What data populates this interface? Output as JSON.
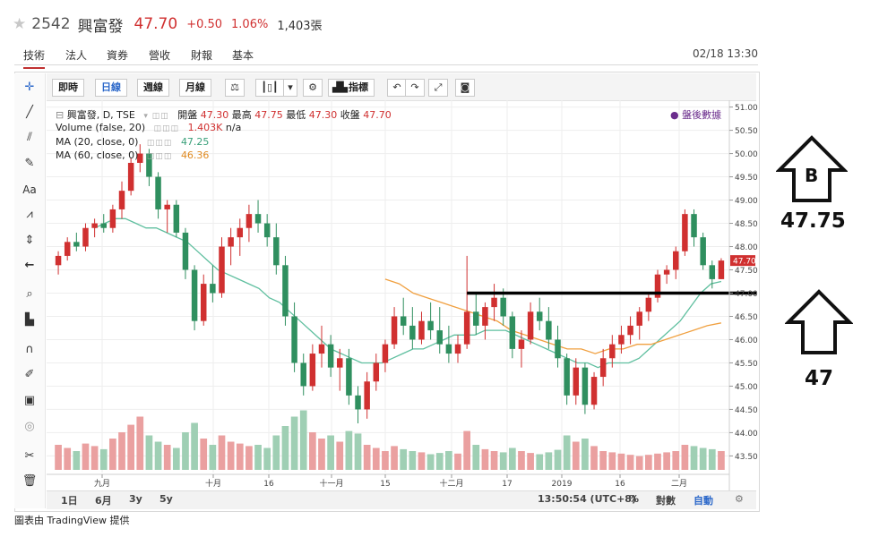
{
  "header": {
    "code": "2542",
    "name": "興富發",
    "price": "47.70",
    "change": "+0.50",
    "change_pct": "1.06%",
    "volume": "1,403張"
  },
  "tabs": [
    "技術",
    "法人",
    "資券",
    "營收",
    "財報",
    "基本"
  ],
  "timestamp": "02/18 13:30",
  "toolbar": {
    "buttons": [
      "即時",
      "日線",
      "週線",
      "月線"
    ],
    "indicator_label": "指標"
  },
  "legend": {
    "symbol_line": "興富發, D, TSE",
    "open_label": "開盤",
    "open": "47.30",
    "high_label": "最高",
    "high": "47.75",
    "low_label": "最低",
    "low": "47.30",
    "close_label": "收盤",
    "close": "47.70",
    "volume_line": "Volume (false, 20)",
    "volume_value": "1.403K",
    "volume_na": "n/a",
    "ma20_line": "MA (20, close, 0)",
    "ma20_value": "47.25",
    "ma60_line": "MA (60, close, 0)",
    "ma60_value": "46.36",
    "after_hours": "盤後數據"
  },
  "colors": {
    "up": "#d03030",
    "down": "#2f8f5f",
    "ma20": "#5fbf9f",
    "ma60": "#f0a040",
    "vol_up": "#eaa0a0",
    "vol_down": "#9fcfb4"
  },
  "bottom": {
    "ranges": [
      "1日",
      "6月",
      "3y",
      "5y"
    ],
    "clock": "13:50:54 (UTC+8)",
    "pct": "%",
    "log": "對數",
    "auto": "自動"
  },
  "credit": "圖表由 TradingView 提供",
  "annotations": {
    "upper_letter": "B",
    "upper_value": "47.75",
    "lower_value": "47",
    "support_level": 47.0
  },
  "chart_data": {
    "type": "candlestick",
    "ylim": [
      43.2,
      51.05
    ],
    "y_ticks": [
      "51.00",
      "50.50",
      "50.00",
      "49.50",
      "49.00",
      "48.50",
      "48.00",
      "47.50",
      "47.00",
      "46.50",
      "46.00",
      "45.50",
      "45.00",
      "44.50",
      "44.00",
      "43.50"
    ],
    "x_tick_labels": [
      "九月",
      "十月",
      "16",
      "十一月",
      "15",
      "十二月",
      "17",
      "2019",
      "16",
      "二月"
    ],
    "last_price_tag": "47.70",
    "candles": [
      [
        47.6,
        47.9,
        47.4,
        47.8
      ],
      [
        47.8,
        48.2,
        47.7,
        48.1
      ],
      [
        48.1,
        48.3,
        47.9,
        48.0
      ],
      [
        48.0,
        48.5,
        47.9,
        48.4
      ],
      [
        48.4,
        48.6,
        48.2,
        48.5
      ],
      [
        48.5,
        48.7,
        48.3,
        48.4
      ],
      [
        48.4,
        48.9,
        48.3,
        48.8
      ],
      [
        48.8,
        49.4,
        48.6,
        49.2
      ],
      [
        49.2,
        49.9,
        49.1,
        49.8
      ],
      [
        49.8,
        50.2,
        49.6,
        50.0
      ],
      [
        50.0,
        50.1,
        49.3,
        49.5
      ],
      [
        49.5,
        49.6,
        48.6,
        48.8
      ],
      [
        48.8,
        49.0,
        48.3,
        48.9
      ],
      [
        48.9,
        49.0,
        48.2,
        48.3
      ],
      [
        48.3,
        48.4,
        47.3,
        47.5
      ],
      [
        47.5,
        47.6,
        46.2,
        46.4
      ],
      [
        46.4,
        47.4,
        46.3,
        47.2
      ],
      [
        47.2,
        47.6,
        46.8,
        47.0
      ],
      [
        47.0,
        48.2,
        46.9,
        48.0
      ],
      [
        48.0,
        48.4,
        47.6,
        48.2
      ],
      [
        48.2,
        48.6,
        47.8,
        48.4
      ],
      [
        48.4,
        48.9,
        48.1,
        48.7
      ],
      [
        48.7,
        49.0,
        48.3,
        48.5
      ],
      [
        48.5,
        48.7,
        48.0,
        48.2
      ],
      [
        48.2,
        48.5,
        47.4,
        47.6
      ],
      [
        47.6,
        47.8,
        46.3,
        46.5
      ],
      [
        46.5,
        46.8,
        45.3,
        45.5
      ],
      [
        45.5,
        45.7,
        44.8,
        45.0
      ],
      [
        45.0,
        45.9,
        44.9,
        45.7
      ],
      [
        45.7,
        46.3,
        45.4,
        45.9
      ],
      [
        45.9,
        46.1,
        45.2,
        45.4
      ],
      [
        45.4,
        45.8,
        44.9,
        45.6
      ],
      [
        45.6,
        45.8,
        44.6,
        44.8
      ],
      [
        44.8,
        45.0,
        44.2,
        44.5
      ],
      [
        44.5,
        45.3,
        44.3,
        45.1
      ],
      [
        45.1,
        45.7,
        44.9,
        45.5
      ],
      [
        45.5,
        46.0,
        45.3,
        45.9
      ],
      [
        45.9,
        46.7,
        45.8,
        46.5
      ],
      [
        46.5,
        46.9,
        46.1,
        46.3
      ],
      [
        46.3,
        46.7,
        45.8,
        46.0
      ],
      [
        46.0,
        46.6,
        45.9,
        46.4
      ],
      [
        46.4,
        46.8,
        46.0,
        46.2
      ],
      [
        46.2,
        46.7,
        45.7,
        45.9
      ],
      [
        45.9,
        46.3,
        45.5,
        45.7
      ],
      [
        45.7,
        46.1,
        45.5,
        45.9
      ],
      [
        45.9,
        47.8,
        45.8,
        46.6
      ],
      [
        46.6,
        47.0,
        46.1,
        46.3
      ],
      [
        46.3,
        46.8,
        46.0,
        46.7
      ],
      [
        46.7,
        47.2,
        46.4,
        46.9
      ],
      [
        46.9,
        47.1,
        46.3,
        46.5
      ],
      [
        46.5,
        46.6,
        45.6,
        45.8
      ],
      [
        45.8,
        46.2,
        45.4,
        46.0
      ],
      [
        46.0,
        46.8,
        45.9,
        46.6
      ],
      [
        46.6,
        46.9,
        46.2,
        46.4
      ],
      [
        46.4,
        46.7,
        45.8,
        46.0
      ],
      [
        46.0,
        46.3,
        45.4,
        45.6
      ],
      [
        45.6,
        45.7,
        44.6,
        44.8
      ],
      [
        44.8,
        45.6,
        44.6,
        45.4
      ],
      [
        45.4,
        45.5,
        44.4,
        44.6
      ],
      [
        44.6,
        45.3,
        44.5,
        45.2
      ],
      [
        45.2,
        45.8,
        45.0,
        45.6
      ],
      [
        45.6,
        46.1,
        45.4,
        45.9
      ],
      [
        45.9,
        46.3,
        45.7,
        46.1
      ],
      [
        46.1,
        46.5,
        45.9,
        46.3
      ],
      [
        46.3,
        46.7,
        46.0,
        46.6
      ],
      [
        46.6,
        47.0,
        46.4,
        46.9
      ],
      [
        46.9,
        47.5,
        46.8,
        47.4
      ],
      [
        47.4,
        47.6,
        47.2,
        47.5
      ],
      [
        47.5,
        48.0,
        47.3,
        47.9
      ],
      [
        47.9,
        48.8,
        47.8,
        48.7
      ],
      [
        48.7,
        48.8,
        48.0,
        48.2
      ],
      [
        48.2,
        48.3,
        47.5,
        47.6
      ],
      [
        47.6,
        47.7,
        47.1,
        47.3
      ],
      [
        47.3,
        47.75,
        47.3,
        47.7
      ]
    ],
    "volume_shape": [
      0.4,
      0.35,
      0.3,
      0.42,
      0.38,
      0.33,
      0.5,
      0.6,
      0.72,
      0.85,
      0.55,
      0.45,
      0.4,
      0.35,
      0.6,
      0.75,
      0.5,
      0.4,
      0.55,
      0.45,
      0.42,
      0.38,
      0.4,
      0.35,
      0.55,
      0.7,
      0.85,
      0.95,
      0.6,
      0.5,
      0.55,
      0.45,
      0.62,
      0.58,
      0.4,
      0.35,
      0.3,
      0.38,
      0.33,
      0.3,
      0.28,
      0.25,
      0.27,
      0.3,
      0.26,
      0.62,
      0.4,
      0.33,
      0.3,
      0.28,
      0.35,
      0.3,
      0.27,
      0.25,
      0.28,
      0.32,
      0.55,
      0.45,
      0.5,
      0.38,
      0.3,
      0.28,
      0.26,
      0.24,
      0.22,
      0.24,
      0.26,
      0.28,
      0.3,
      0.4,
      0.38,
      0.35,
      0.33,
      0.3
    ],
    "ma20": [
      48.4,
      48.5,
      48.6,
      48.6,
      48.5,
      48.4,
      48.4,
      48.3,
      48.2,
      48.1,
      47.9,
      47.7,
      47.5,
      47.4,
      47.3,
      47.2,
      47.1,
      46.9,
      46.8,
      46.6,
      46.4,
      46.2,
      46.0,
      45.8,
      45.7,
      45.6,
      45.5,
      45.5,
      45.5,
      45.6,
      45.7,
      45.8,
      45.8,
      45.9,
      46.0,
      46.1,
      46.1,
      46.1,
      46.2,
      46.2,
      46.2,
      46.1,
      46.0,
      45.9,
      45.8,
      45.7,
      45.6,
      45.5,
      45.5,
      45.4,
      45.5,
      45.5,
      45.5,
      45.6,
      45.8,
      46.0,
      46.2,
      46.4,
      46.7,
      47.0,
      47.2,
      47.25
    ],
    "ma60": [
      47.3,
      47.2,
      47.0,
      46.9,
      46.8,
      46.7,
      46.6,
      46.5,
      46.4,
      46.2,
      46.1,
      46.0,
      45.9,
      45.8,
      45.8,
      45.7,
      45.8,
      45.8,
      45.9,
      45.9,
      46.0,
      46.1,
      46.2,
      46.3,
      46.36
    ]
  }
}
